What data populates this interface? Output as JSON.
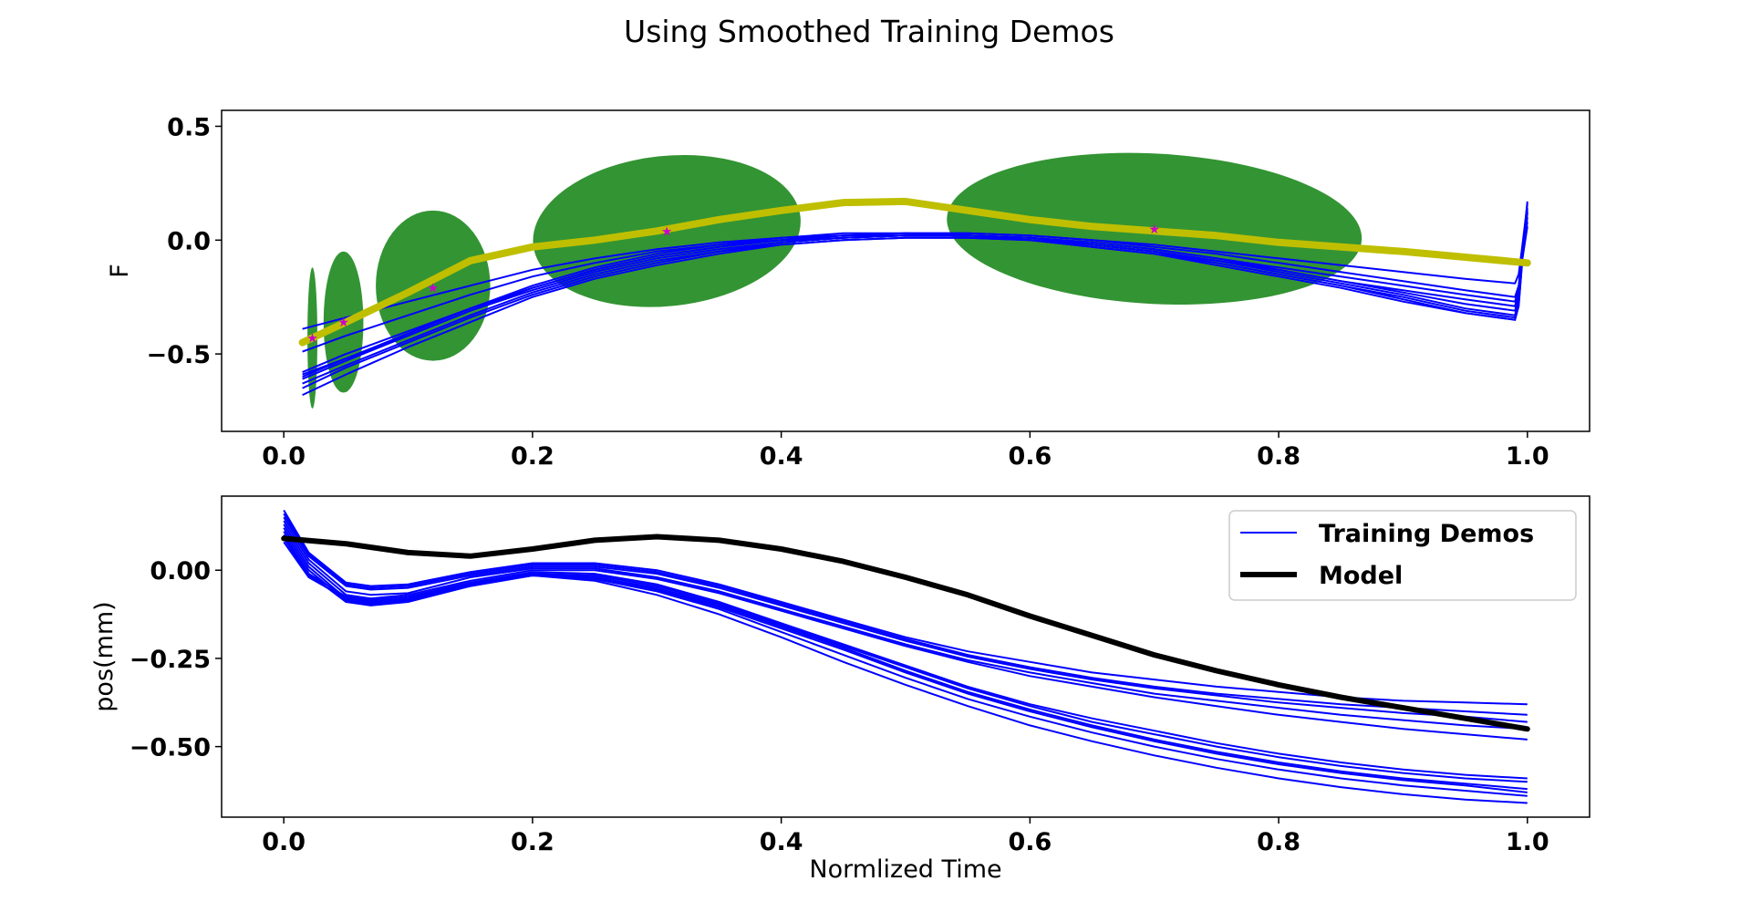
{
  "figure": {
    "title": "Using Smoothed Training Demos"
  },
  "chart_data": [
    {
      "type": "line",
      "panel": "top",
      "title": "",
      "xlabel": "",
      "ylabel": "F",
      "xlim": [
        -0.05,
        1.05
      ],
      "ylim": [
        -0.84,
        0.57
      ],
      "xticks": [
        0.0,
        0.2,
        0.4,
        0.6,
        0.8,
        1.0
      ],
      "xtick_labels": [
        "0.0",
        "0.2",
        "0.4",
        "0.6",
        "0.8",
        "1.0"
      ],
      "yticks": [
        0.5,
        0.0,
        -0.5
      ],
      "ytick_labels": [
        "0.5",
        "0.0",
        "−0.5"
      ],
      "grid": false,
      "colors": {
        "demos": "#0000ff",
        "model": "#bfbf00",
        "ellipses": "#228b22",
        "stars": "#cc00cc"
      },
      "ellipses": [
        {
          "cx": 0.023,
          "cy": -0.43,
          "rx": 0.004,
          "ry": 0.31
        },
        {
          "cx": 0.048,
          "cy": -0.36,
          "rx": 0.016,
          "ry": 0.31
        },
        {
          "cx": 0.12,
          "cy": -0.2,
          "rx": 0.046,
          "ry": 0.33
        },
        {
          "cx": 0.308,
          "cy": 0.04,
          "rx": 0.108,
          "ry": 0.33,
          "angle": -6
        },
        {
          "cx": 0.7,
          "cy": 0.05,
          "rx": 0.167,
          "ry": 0.33,
          "angle": 3
        }
      ],
      "series": [
        {
          "name": "Model",
          "color": "#bfbf00",
          "x": [
            0.015,
            0.05,
            0.1,
            0.15,
            0.2,
            0.25,
            0.3,
            0.35,
            0.4,
            0.45,
            0.5,
            0.55,
            0.6,
            0.65,
            0.7,
            0.75,
            0.8,
            0.85,
            0.9,
            0.95,
            1.0
          ],
          "y": [
            -0.45,
            -0.36,
            -0.23,
            -0.09,
            -0.03,
            0.0,
            0.04,
            0.09,
            0.13,
            0.165,
            0.17,
            0.13,
            0.09,
            0.06,
            0.04,
            0.02,
            -0.01,
            -0.03,
            -0.05,
            -0.075,
            -0.1
          ]
        }
      ],
      "star_points": [
        {
          "x": 0.023,
          "y": -0.43
        },
        {
          "x": 0.048,
          "y": -0.36
        },
        {
          "x": 0.12,
          "y": -0.21
        },
        {
          "x": 0.308,
          "y": 0.04
        },
        {
          "x": 0.7,
          "y": 0.05
        }
      ],
      "demos": {
        "name": "Training Demos",
        "x": [
          0.015,
          0.05,
          0.1,
          0.15,
          0.2,
          0.25,
          0.3,
          0.35,
          0.4,
          0.45,
          0.5,
          0.55,
          0.6,
          0.65,
          0.7,
          0.75,
          0.8,
          0.85,
          0.9,
          0.95,
          0.99,
          0.993,
          0.996,
          1.0
        ],
        "lines": [
          [
            -0.59,
            -0.52,
            -0.41,
            -0.3,
            -0.2,
            -0.12,
            -0.06,
            -0.02,
            0.0,
            0.02,
            0.02,
            0.02,
            0.01,
            -0.01,
            -0.04,
            -0.08,
            -0.13,
            -0.18,
            -0.23,
            -0.28,
            -0.31,
            -0.25,
            -0.05,
            0.17
          ],
          [
            -0.61,
            -0.53,
            -0.42,
            -0.31,
            -0.21,
            -0.13,
            -0.07,
            -0.03,
            0.0,
            0.01,
            0.02,
            0.02,
            0.01,
            -0.02,
            -0.05,
            -0.09,
            -0.14,
            -0.19,
            -0.24,
            -0.3,
            -0.33,
            -0.26,
            -0.06,
            0.12
          ],
          [
            -0.63,
            -0.55,
            -0.44,
            -0.33,
            -0.23,
            -0.15,
            -0.09,
            -0.05,
            -0.01,
            0.01,
            0.02,
            0.02,
            0.0,
            -0.02,
            -0.05,
            -0.1,
            -0.15,
            -0.2,
            -0.25,
            -0.31,
            -0.34,
            -0.27,
            -0.07,
            0.1
          ],
          [
            -0.65,
            -0.56,
            -0.45,
            -0.34,
            -0.24,
            -0.16,
            -0.1,
            -0.05,
            -0.02,
            0.0,
            0.01,
            0.01,
            0.0,
            -0.03,
            -0.06,
            -0.1,
            -0.15,
            -0.2,
            -0.26,
            -0.32,
            -0.35,
            -0.28,
            -0.08,
            0.08
          ],
          [
            -0.68,
            -0.59,
            -0.47,
            -0.36,
            -0.25,
            -0.17,
            -0.11,
            -0.06,
            -0.02,
            0.0,
            0.01,
            0.01,
            0.0,
            -0.03,
            -0.06,
            -0.11,
            -0.16,
            -0.21,
            -0.27,
            -0.32,
            -0.35,
            -0.29,
            -0.08,
            0.06
          ],
          [
            -0.49,
            -0.42,
            -0.33,
            -0.24,
            -0.16,
            -0.1,
            -0.05,
            -0.02,
            0.01,
            0.02,
            0.03,
            0.03,
            0.02,
            0.0,
            -0.03,
            -0.06,
            -0.1,
            -0.14,
            -0.18,
            -0.22,
            -0.25,
            -0.2,
            -0.04,
            0.14
          ],
          [
            -0.39,
            -0.34,
            -0.27,
            -0.2,
            -0.13,
            -0.08,
            -0.04,
            -0.01,
            0.01,
            0.03,
            0.03,
            0.03,
            0.02,
            0.0,
            -0.02,
            -0.05,
            -0.08,
            -0.11,
            -0.14,
            -0.17,
            -0.19,
            -0.15,
            -0.02,
            0.16
          ],
          [
            -0.6,
            -0.52,
            -0.42,
            -0.31,
            -0.22,
            -0.14,
            -0.08,
            -0.04,
            -0.01,
            0.01,
            0.02,
            0.02,
            0.01,
            -0.02,
            -0.05,
            -0.09,
            -0.13,
            -0.18,
            -0.22,
            -0.26,
            -0.29,
            -0.22,
            -0.04,
            0.12
          ],
          [
            -0.58,
            -0.5,
            -0.4,
            -0.3,
            -0.21,
            -0.13,
            -0.07,
            -0.03,
            0.0,
            0.02,
            0.03,
            0.02,
            0.01,
            -0.01,
            -0.04,
            -0.08,
            -0.12,
            -0.16,
            -0.2,
            -0.24,
            -0.27,
            -0.21,
            -0.03,
            0.13
          ]
        ]
      }
    },
    {
      "type": "line",
      "panel": "bottom",
      "title": "",
      "xlabel": "Normlized Time",
      "ylabel": "pos(mm)",
      "xlim": [
        -0.05,
        1.05
      ],
      "ylim": [
        -0.7,
        0.21
      ],
      "xticks": [
        0.0,
        0.2,
        0.4,
        0.6,
        0.8,
        1.0
      ],
      "xtick_labels": [
        "0.0",
        "0.2",
        "0.4",
        "0.6",
        "0.8",
        "1.0"
      ],
      "yticks": [
        0.0,
        -0.25,
        -0.5
      ],
      "ytick_labels": [
        "0.00",
        "−0.25",
        "−0.50"
      ],
      "grid": false,
      "legend": {
        "placement": "top-right",
        "entries": [
          {
            "label": "Training Demos",
            "color": "#0000ff"
          },
          {
            "label": "Model",
            "color": "#000000"
          }
        ]
      },
      "series": [
        {
          "name": "Model",
          "color": "#000000",
          "x": [
            0.0,
            0.05,
            0.1,
            0.15,
            0.2,
            0.25,
            0.3,
            0.35,
            0.4,
            0.45,
            0.5,
            0.55,
            0.6,
            0.65,
            0.7,
            0.75,
            0.8,
            0.85,
            0.9,
            0.95,
            1.0
          ],
          "y": [
            0.09,
            0.075,
            0.05,
            0.04,
            0.06,
            0.085,
            0.095,
            0.085,
            0.06,
            0.025,
            -0.02,
            -0.07,
            -0.13,
            -0.185,
            -0.24,
            -0.285,
            -0.325,
            -0.36,
            -0.39,
            -0.42,
            -0.45
          ]
        }
      ],
      "demos": {
        "name": "Training Demos",
        "x": [
          0.0,
          0.02,
          0.05,
          0.07,
          0.1,
          0.15,
          0.2,
          0.25,
          0.3,
          0.35,
          0.4,
          0.45,
          0.5,
          0.55,
          0.6,
          0.65,
          0.7,
          0.75,
          0.8,
          0.85,
          0.9,
          0.95,
          1.0
        ],
        "lines": [
          [
            0.17,
            0.05,
            -0.035,
            -0.045,
            -0.04,
            -0.005,
            0.02,
            0.02,
            0.0,
            -0.04,
            -0.09,
            -0.14,
            -0.19,
            -0.23,
            -0.26,
            -0.29,
            -0.31,
            -0.33,
            -0.345,
            -0.36,
            -0.37,
            -0.375,
            -0.38
          ],
          [
            0.15,
            0.04,
            -0.045,
            -0.055,
            -0.05,
            -0.015,
            0.01,
            0.01,
            -0.01,
            -0.05,
            -0.1,
            -0.15,
            -0.2,
            -0.245,
            -0.28,
            -0.31,
            -0.335,
            -0.355,
            -0.375,
            -0.39,
            -0.405,
            -0.415,
            -0.43
          ],
          [
            0.14,
            0.03,
            -0.06,
            -0.07,
            -0.065,
            -0.02,
            0.005,
            0.005,
            -0.02,
            -0.06,
            -0.11,
            -0.16,
            -0.21,
            -0.255,
            -0.29,
            -0.32,
            -0.35,
            -0.37,
            -0.39,
            -0.41,
            -0.425,
            -0.44,
            -0.45
          ],
          [
            0.13,
            0.02,
            -0.07,
            -0.08,
            -0.07,
            -0.03,
            0.0,
            0.0,
            -0.025,
            -0.065,
            -0.115,
            -0.165,
            -0.215,
            -0.26,
            -0.3,
            -0.33,
            -0.36,
            -0.385,
            -0.41,
            -0.43,
            -0.45,
            -0.465,
            -0.48
          ],
          [
            0.12,
            0.01,
            -0.08,
            -0.09,
            -0.08,
            -0.035,
            -0.005,
            -0.01,
            -0.04,
            -0.09,
            -0.15,
            -0.21,
            -0.27,
            -0.33,
            -0.38,
            -0.42,
            -0.455,
            -0.49,
            -0.52,
            -0.545,
            -0.565,
            -0.58,
            -0.59
          ],
          [
            0.11,
            0.0,
            -0.085,
            -0.095,
            -0.085,
            -0.04,
            -0.01,
            -0.015,
            -0.045,
            -0.095,
            -0.155,
            -0.215,
            -0.275,
            -0.335,
            -0.385,
            -0.43,
            -0.465,
            -0.5,
            -0.53,
            -0.555,
            -0.575,
            -0.59,
            -0.6
          ],
          [
            0.1,
            -0.01,
            -0.09,
            -0.1,
            -0.09,
            -0.045,
            -0.015,
            -0.02,
            -0.05,
            -0.1,
            -0.16,
            -0.22,
            -0.285,
            -0.345,
            -0.395,
            -0.44,
            -0.48,
            -0.515,
            -0.545,
            -0.57,
            -0.59,
            -0.605,
            -0.62
          ],
          [
            0.09,
            -0.015,
            -0.085,
            -0.095,
            -0.085,
            -0.045,
            -0.015,
            -0.025,
            -0.06,
            -0.11,
            -0.175,
            -0.24,
            -0.305,
            -0.365,
            -0.415,
            -0.46,
            -0.5,
            -0.535,
            -0.565,
            -0.59,
            -0.61,
            -0.625,
            -0.64
          ],
          [
            0.08,
            -0.02,
            -0.08,
            -0.09,
            -0.08,
            -0.04,
            -0.015,
            -0.03,
            -0.07,
            -0.125,
            -0.19,
            -0.26,
            -0.325,
            -0.385,
            -0.44,
            -0.485,
            -0.525,
            -0.56,
            -0.59,
            -0.615,
            -0.635,
            -0.65,
            -0.66
          ],
          [
            0.1,
            -0.01,
            -0.075,
            -0.085,
            -0.075,
            -0.035,
            -0.01,
            -0.02,
            -0.055,
            -0.105,
            -0.165,
            -0.225,
            -0.29,
            -0.35,
            -0.4,
            -0.445,
            -0.485,
            -0.52,
            -0.55,
            -0.575,
            -0.595,
            -0.61,
            -0.63
          ],
          [
            0.16,
            0.045,
            -0.04,
            -0.05,
            -0.045,
            -0.01,
            0.015,
            0.015,
            -0.005,
            -0.045,
            -0.095,
            -0.145,
            -0.195,
            -0.24,
            -0.275,
            -0.305,
            -0.33,
            -0.35,
            -0.365,
            -0.38,
            -0.39,
            -0.4,
            -0.41
          ]
        ]
      }
    }
  ]
}
